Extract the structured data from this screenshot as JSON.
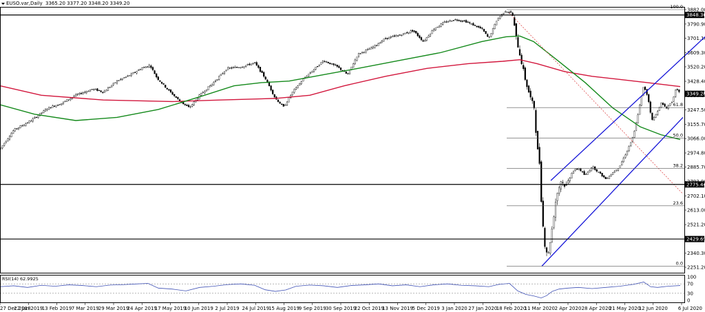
{
  "header": {
    "symbol": "EUSO.var,Daily",
    "ohlc": "3365.20 3377.20 3348.20 3349.20"
  },
  "chart_data": {
    "type": "candlestick",
    "y_ticks": [
      "3882.00",
      "3790.90",
      "3701.10",
      "3609.30",
      "3520.20",
      "3428.40",
      "3338.10",
      "3247.50",
      "3155.70",
      "3066.00",
      "2974.80",
      "2885.70",
      "2793.90",
      "2702.10",
      "2613.00",
      "2521.20",
      "2430.00",
      "2340.30",
      "2251.20"
    ],
    "ylim": [
      2251.2,
      3882.0
    ],
    "x_ticks": [
      "27 Dec 2018",
      "22 Jan 2019",
      "13 Feb 2019",
      "7 Mar 2019",
      "29 Mar 2019",
      "24 Apr 2019",
      "17 May 2019",
      "10 Jun 2019",
      "2 Jul 2019",
      "24 Jul 2019",
      "15 Aug 2019",
      "9 Sep 2019",
      "30 Sep 2019",
      "22 Oct 2019",
      "13 Nov 2019",
      "5 Dec 2019",
      "3 Jan 2020",
      "27 Jan 2020",
      "18 Feb 2020",
      "11 Mar 2020",
      "2 Apr 2020",
      "28 Apr 2020",
      "21 May 2020",
      "12 Jun 2020",
      "6 Jul 2020"
    ],
    "price_path": [
      [
        0,
        3000
      ],
      [
        20,
        3120
      ],
      [
        45,
        3180
      ],
      [
        70,
        3260
      ],
      [
        90,
        3290
      ],
      [
        110,
        3340
      ],
      [
        135,
        3380
      ],
      [
        150,
        3360
      ],
      [
        170,
        3430
      ],
      [
        190,
        3470
      ],
      [
        205,
        3510
      ],
      [
        218,
        3530
      ],
      [
        228,
        3450
      ],
      [
        245,
        3370
      ],
      [
        262,
        3300
      ],
      [
        275,
        3260
      ],
      [
        290,
        3340
      ],
      [
        310,
        3420
      ],
      [
        330,
        3510
      ],
      [
        350,
        3520
      ],
      [
        370,
        3545
      ],
      [
        385,
        3450
      ],
      [
        400,
        3320
      ],
      [
        412,
        3265
      ],
      [
        425,
        3360
      ],
      [
        440,
        3440
      ],
      [
        455,
        3500
      ],
      [
        470,
        3560
      ],
      [
        490,
        3520
      ],
      [
        505,
        3470
      ],
      [
        520,
        3600
      ],
      [
        540,
        3640
      ],
      [
        560,
        3700
      ],
      [
        580,
        3720
      ],
      [
        600,
        3750
      ],
      [
        615,
        3680
      ],
      [
        630,
        3760
      ],
      [
        645,
        3800
      ],
      [
        660,
        3820
      ],
      [
        675,
        3810
      ],
      [
        690,
        3780
      ],
      [
        700,
        3760
      ],
      [
        710,
        3700
      ],
      [
        722,
        3820
      ],
      [
        734,
        3875
      ],
      [
        744,
        3860
      ],
      [
        750,
        3700
      ],
      [
        757,
        3560
      ],
      [
        764,
        3420
      ],
      [
        770,
        3330
      ],
      [
        776,
        3260
      ],
      [
        780,
        3020
      ],
      [
        784,
        2900
      ],
      [
        787,
        2600
      ],
      [
        791,
        2400
      ],
      [
        796,
        2320
      ],
      [
        802,
        2500
      ],
      [
        808,
        2700
      ],
      [
        815,
        2800
      ],
      [
        822,
        2760
      ],
      [
        830,
        2850
      ],
      [
        840,
        2880
      ],
      [
        850,
        2830
      ],
      [
        860,
        2890
      ],
      [
        870,
        2850
      ],
      [
        880,
        2810
      ],
      [
        890,
        2850
      ],
      [
        900,
        2890
      ],
      [
        910,
        2980
      ],
      [
        920,
        3080
      ],
      [
        928,
        3250
      ],
      [
        935,
        3400
      ],
      [
        941,
        3330
      ],
      [
        947,
        3180
      ],
      [
        953,
        3220
      ],
      [
        960,
        3290
      ],
      [
        968,
        3260
      ],
      [
        976,
        3300
      ],
      [
        982,
        3380
      ],
      [
        988,
        3349
      ]
    ],
    "ma_red": [
      [
        0,
        3400
      ],
      [
        60,
        3340
      ],
      [
        150,
        3310
      ],
      [
        250,
        3300
      ],
      [
        320,
        3310
      ],
      [
        400,
        3320
      ],
      [
        450,
        3340
      ],
      [
        500,
        3400
      ],
      [
        560,
        3460
      ],
      [
        620,
        3510
      ],
      [
        680,
        3540
      ],
      [
        730,
        3555
      ],
      [
        755,
        3565
      ],
      [
        780,
        3540
      ],
      [
        820,
        3490
      ],
      [
        860,
        3460
      ],
      [
        900,
        3440
      ],
      [
        940,
        3420
      ],
      [
        988,
        3395
      ]
    ],
    "ma_green": [
      [
        0,
        3280
      ],
      [
        50,
        3220
      ],
      [
        110,
        3180
      ],
      [
        170,
        3200
      ],
      [
        230,
        3250
      ],
      [
        290,
        3330
      ],
      [
        340,
        3400
      ],
      [
        380,
        3420
      ],
      [
        420,
        3430
      ],
      [
        470,
        3470
      ],
      [
        520,
        3510
      ],
      [
        580,
        3560
      ],
      [
        640,
        3610
      ],
      [
        700,
        3680
      ],
      [
        735,
        3710
      ],
      [
        755,
        3715
      ],
      [
        775,
        3680
      ],
      [
        810,
        3560
      ],
      [
        850,
        3420
      ],
      [
        890,
        3260
      ],
      [
        930,
        3140
      ],
      [
        960,
        3090
      ],
      [
        988,
        3060
      ]
    ],
    "trend_upper": [
      [
        800,
        2800
      ],
      [
        1024,
        3710
      ]
    ],
    "trend_lower": [
      [
        787,
        2258
      ],
      [
        992,
        3200
      ]
    ],
    "trend_dashed": [
      [
        740,
        3860
      ],
      [
        992,
        2715
      ]
    ],
    "h_levels": [
      {
        "label": "3848.36",
        "value": 3848.36
      },
      {
        "label": "2775.44",
        "value": 2775.44
      },
      {
        "label": "2429.69",
        "value": 2429.69
      }
    ],
    "current_price": {
      "label": "3349.20",
      "value": 3349.2
    },
    "fib_levels": [
      {
        "label": "100.0",
        "value": 3882.0
      },
      {
        "label": "61.8",
        "value": 3262.0
      },
      {
        "label": "50.0",
        "value": 3069.0
      },
      {
        "label": "38.2",
        "value": 2877.0
      },
      {
        "label": "23.6",
        "value": 2640.0
      },
      {
        "label": "0.0",
        "value": 2258.0
      }
    ],
    "rsi": {
      "label": "RSI(14) 62.9925",
      "ticks": [
        "100",
        "70",
        "30",
        "0"
      ],
      "ylim": [
        0,
        100
      ],
      "levels": [
        70,
        30
      ],
      "path": [
        [
          0,
          58
        ],
        [
          20,
          62
        ],
        [
          40,
          55
        ],
        [
          60,
          64
        ],
        [
          80,
          60
        ],
        [
          100,
          66
        ],
        [
          120,
          63
        ],
        [
          140,
          58
        ],
        [
          160,
          65
        ],
        [
          180,
          67
        ],
        [
          200,
          70
        ],
        [
          215,
          72
        ],
        [
          230,
          52
        ],
        [
          250,
          48
        ],
        [
          270,
          40
        ],
        [
          290,
          55
        ],
        [
          310,
          60
        ],
        [
          330,
          67
        ],
        [
          350,
          70
        ],
        [
          370,
          64
        ],
        [
          385,
          45
        ],
        [
          400,
          38
        ],
        [
          415,
          44
        ],
        [
          430,
          60
        ],
        [
          450,
          65
        ],
        [
          470,
          62
        ],
        [
          490,
          55
        ],
        [
          510,
          63
        ],
        [
          530,
          66
        ],
        [
          550,
          70
        ],
        [
          570,
          62
        ],
        [
          590,
          66
        ],
        [
          610,
          58
        ],
        [
          630,
          66
        ],
        [
          650,
          70
        ],
        [
          670,
          64
        ],
        [
          690,
          62
        ],
        [
          710,
          58
        ],
        [
          725,
          68
        ],
        [
          740,
          72
        ],
        [
          752,
          40
        ],
        [
          764,
          25
        ],
        [
          776,
          18
        ],
        [
          786,
          10
        ],
        [
          794,
          20
        ],
        [
          802,
          38
        ],
        [
          812,
          48
        ],
        [
          825,
          52
        ],
        [
          840,
          55
        ],
        [
          860,
          50
        ],
        [
          880,
          55
        ],
        [
          900,
          60
        ],
        [
          920,
          68
        ],
        [
          935,
          78
        ],
        [
          945,
          58
        ],
        [
          955,
          55
        ],
        [
          970,
          60
        ],
        [
          988,
          63
        ]
      ]
    }
  }
}
